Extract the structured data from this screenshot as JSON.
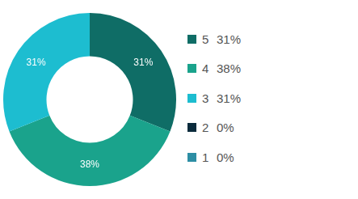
{
  "chart_data": {
    "type": "doughnut",
    "categories": [
      "5",
      "4",
      "3",
      "2",
      "1"
    ],
    "values": [
      31,
      38,
      31,
      0,
      0
    ],
    "value_labels": [
      "31%",
      "38%",
      "31%",
      "0%",
      "0%"
    ],
    "colors": [
      "#0f6d66",
      "#1aa38c",
      "#1dbdd0",
      "#0a2b3c",
      "#2d8ea4"
    ],
    "data_labels": true,
    "legend": "right"
  }
}
